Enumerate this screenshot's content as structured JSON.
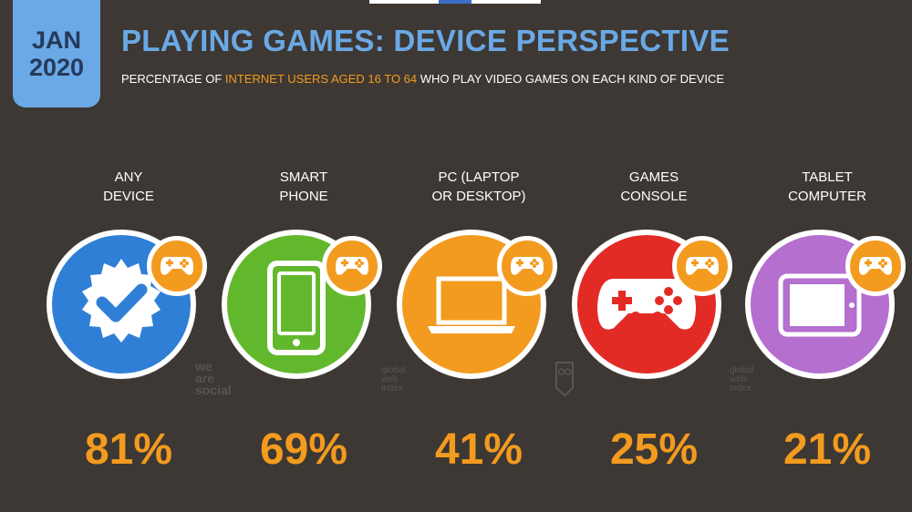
{
  "header": {
    "badge_month": "JAN",
    "badge_year": "2020",
    "title": "PLAYING GAMES: DEVICE PERSPECTIVE",
    "subtitle_pre": "PERCENTAGE OF ",
    "subtitle_highlight": "INTERNET USERS AGED 16 TO 64",
    "subtitle_post": " WHO PLAY VIDEO GAMES ON EACH KIND OF DEVICE"
  },
  "colors": {
    "background": "#3d3834",
    "accent_blue": "#6aa9e6",
    "accent_orange": "#f39b1f"
  },
  "devices": [
    {
      "label_line1": "ANY",
      "label_line2": "DEVICE",
      "value": "81%",
      "color": "#2f7fd6",
      "icon": "verified-check-icon"
    },
    {
      "label_line1": "SMART",
      "label_line2": "PHONE",
      "value": "69%",
      "color": "#62b82c",
      "icon": "smartphone-icon"
    },
    {
      "label_line1": "PC (LAPTOP",
      "label_line2": "OR DESKTOP)",
      "value": "41%",
      "color": "#f39b1f",
      "icon": "laptop-icon"
    },
    {
      "label_line1": "GAMES",
      "label_line2": "CONSOLE",
      "value": "25%",
      "color": "#e32b26",
      "icon": "gamepad-icon"
    },
    {
      "label_line1": "TABLET",
      "label_line2": "COMPUTER",
      "value": "21%",
      "color": "#b46fcf",
      "icon": "tablet-icon"
    }
  ],
  "watermarks": {
    "we_are_social": [
      "we",
      "are",
      "social"
    ],
    "globalwebindex": [
      "global",
      "web",
      "index"
    ]
  }
}
